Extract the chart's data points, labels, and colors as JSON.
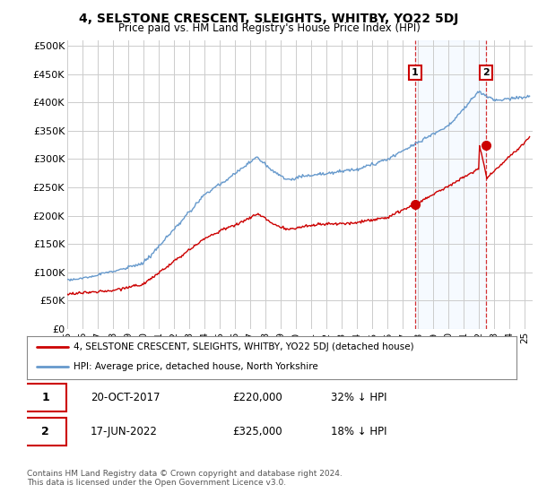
{
  "title": "4, SELSTONE CRESCENT, SLEIGHTS, WHITBY, YO22 5DJ",
  "subtitle": "Price paid vs. HM Land Registry's House Price Index (HPI)",
  "ylabel_ticks": [
    "£0",
    "£50K",
    "£100K",
    "£150K",
    "£200K",
    "£250K",
    "£300K",
    "£350K",
    "£400K",
    "£450K",
    "£500K"
  ],
  "ytick_values": [
    0,
    50000,
    100000,
    150000,
    200000,
    250000,
    300000,
    350000,
    400000,
    450000,
    500000
  ],
  "ylim": [
    0,
    510000
  ],
  "xlim_start": 1995.0,
  "xlim_end": 2025.5,
  "xtick_years": [
    1995,
    1996,
    1997,
    1998,
    1999,
    2000,
    2001,
    2002,
    2003,
    2004,
    2005,
    2006,
    2007,
    2008,
    2009,
    2010,
    2011,
    2012,
    2013,
    2014,
    2015,
    2016,
    2017,
    2018,
    2019,
    2020,
    2021,
    2022,
    2023,
    2024,
    2025
  ],
  "hpi_color": "#6699cc",
  "price_color": "#cc0000",
  "marker1_x": 2017.8,
  "marker1_y": 220000,
  "marker2_x": 2022.45,
  "marker2_y": 325000,
  "vline1_x": 2017.8,
  "vline2_x": 2022.45,
  "shade_color": "#ddeeff",
  "legend_label1": "4, SELSTONE CRESCENT, SLEIGHTS, WHITBY, YO22 5DJ (detached house)",
  "legend_label2": "HPI: Average price, detached house, North Yorkshire",
  "table_row1": [
    "1",
    "20-OCT-2017",
    "£220,000",
    "32% ↓ HPI"
  ],
  "table_row2": [
    "2",
    "17-JUN-2022",
    "£325,000",
    "18% ↓ HPI"
  ],
  "footer": "Contains HM Land Registry data © Crown copyright and database right 2024.\nThis data is licensed under the Open Government Licence v3.0.",
  "background_color": "#ffffff",
  "grid_color": "#cccccc"
}
